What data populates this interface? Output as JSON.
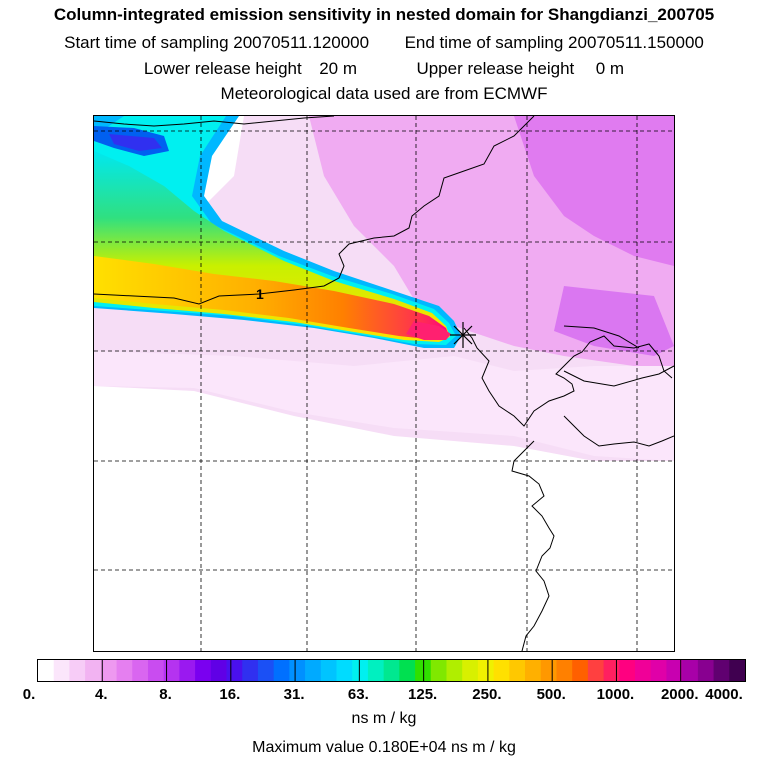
{
  "title": {
    "line1": "Column-integrated emission sensitivity in nested domain for Shangdianzi_200705",
    "start_label": "Start time of sampling",
    "start_value": "20070511.120000",
    "end_label": "End time of sampling",
    "end_value": "20070511.150000",
    "lower_label": "Lower release height",
    "lower_value": "20 m",
    "upper_label": "Upper release height",
    "upper_value": "0 m",
    "met_line": "Meteorological data used are from ECMWF"
  },
  "map": {
    "contour_label": "1",
    "receptor_marker": "Shangdianzi"
  },
  "colorbar": {
    "labels": [
      "0.",
      "4.",
      "8.",
      "16.",
      "31.",
      "63.",
      "125.",
      "250.",
      "500.",
      "1000.",
      "2000.",
      "4000."
    ],
    "colors": [
      "#ffffff",
      "#fbe6fb",
      "#f7ccf7",
      "#f2b3f2",
      "#ee99f0",
      "#e57ff0",
      "#d966f0",
      "#c94cf0",
      "#b533f0",
      "#9a19f0",
      "#7a00f0",
      "#6000e6",
      "#4a10ee",
      "#3030f0",
      "#1b50f5",
      "#0070ff",
      "#0090ff",
      "#00aaff",
      "#00c4ff",
      "#00dcff",
      "#00f0f0",
      "#00f0c0",
      "#00e890",
      "#00e050",
      "#30e000",
      "#80e800",
      "#b0ee00",
      "#d8f000",
      "#f0f000",
      "#ffe000",
      "#ffc800",
      "#ffb000",
      "#ff9800",
      "#ff8000",
      "#ff6000",
      "#ff4040",
      "#ff2060",
      "#ff0080",
      "#f00098",
      "#e000a8",
      "#c800b0",
      "#a800a8",
      "#880090",
      "#600070",
      "#400050"
    ],
    "units": "ns m / kg"
  },
  "max_value": {
    "label": "Maximum value",
    "value": "0.180E+04",
    "units": "ns m / kg"
  }
}
